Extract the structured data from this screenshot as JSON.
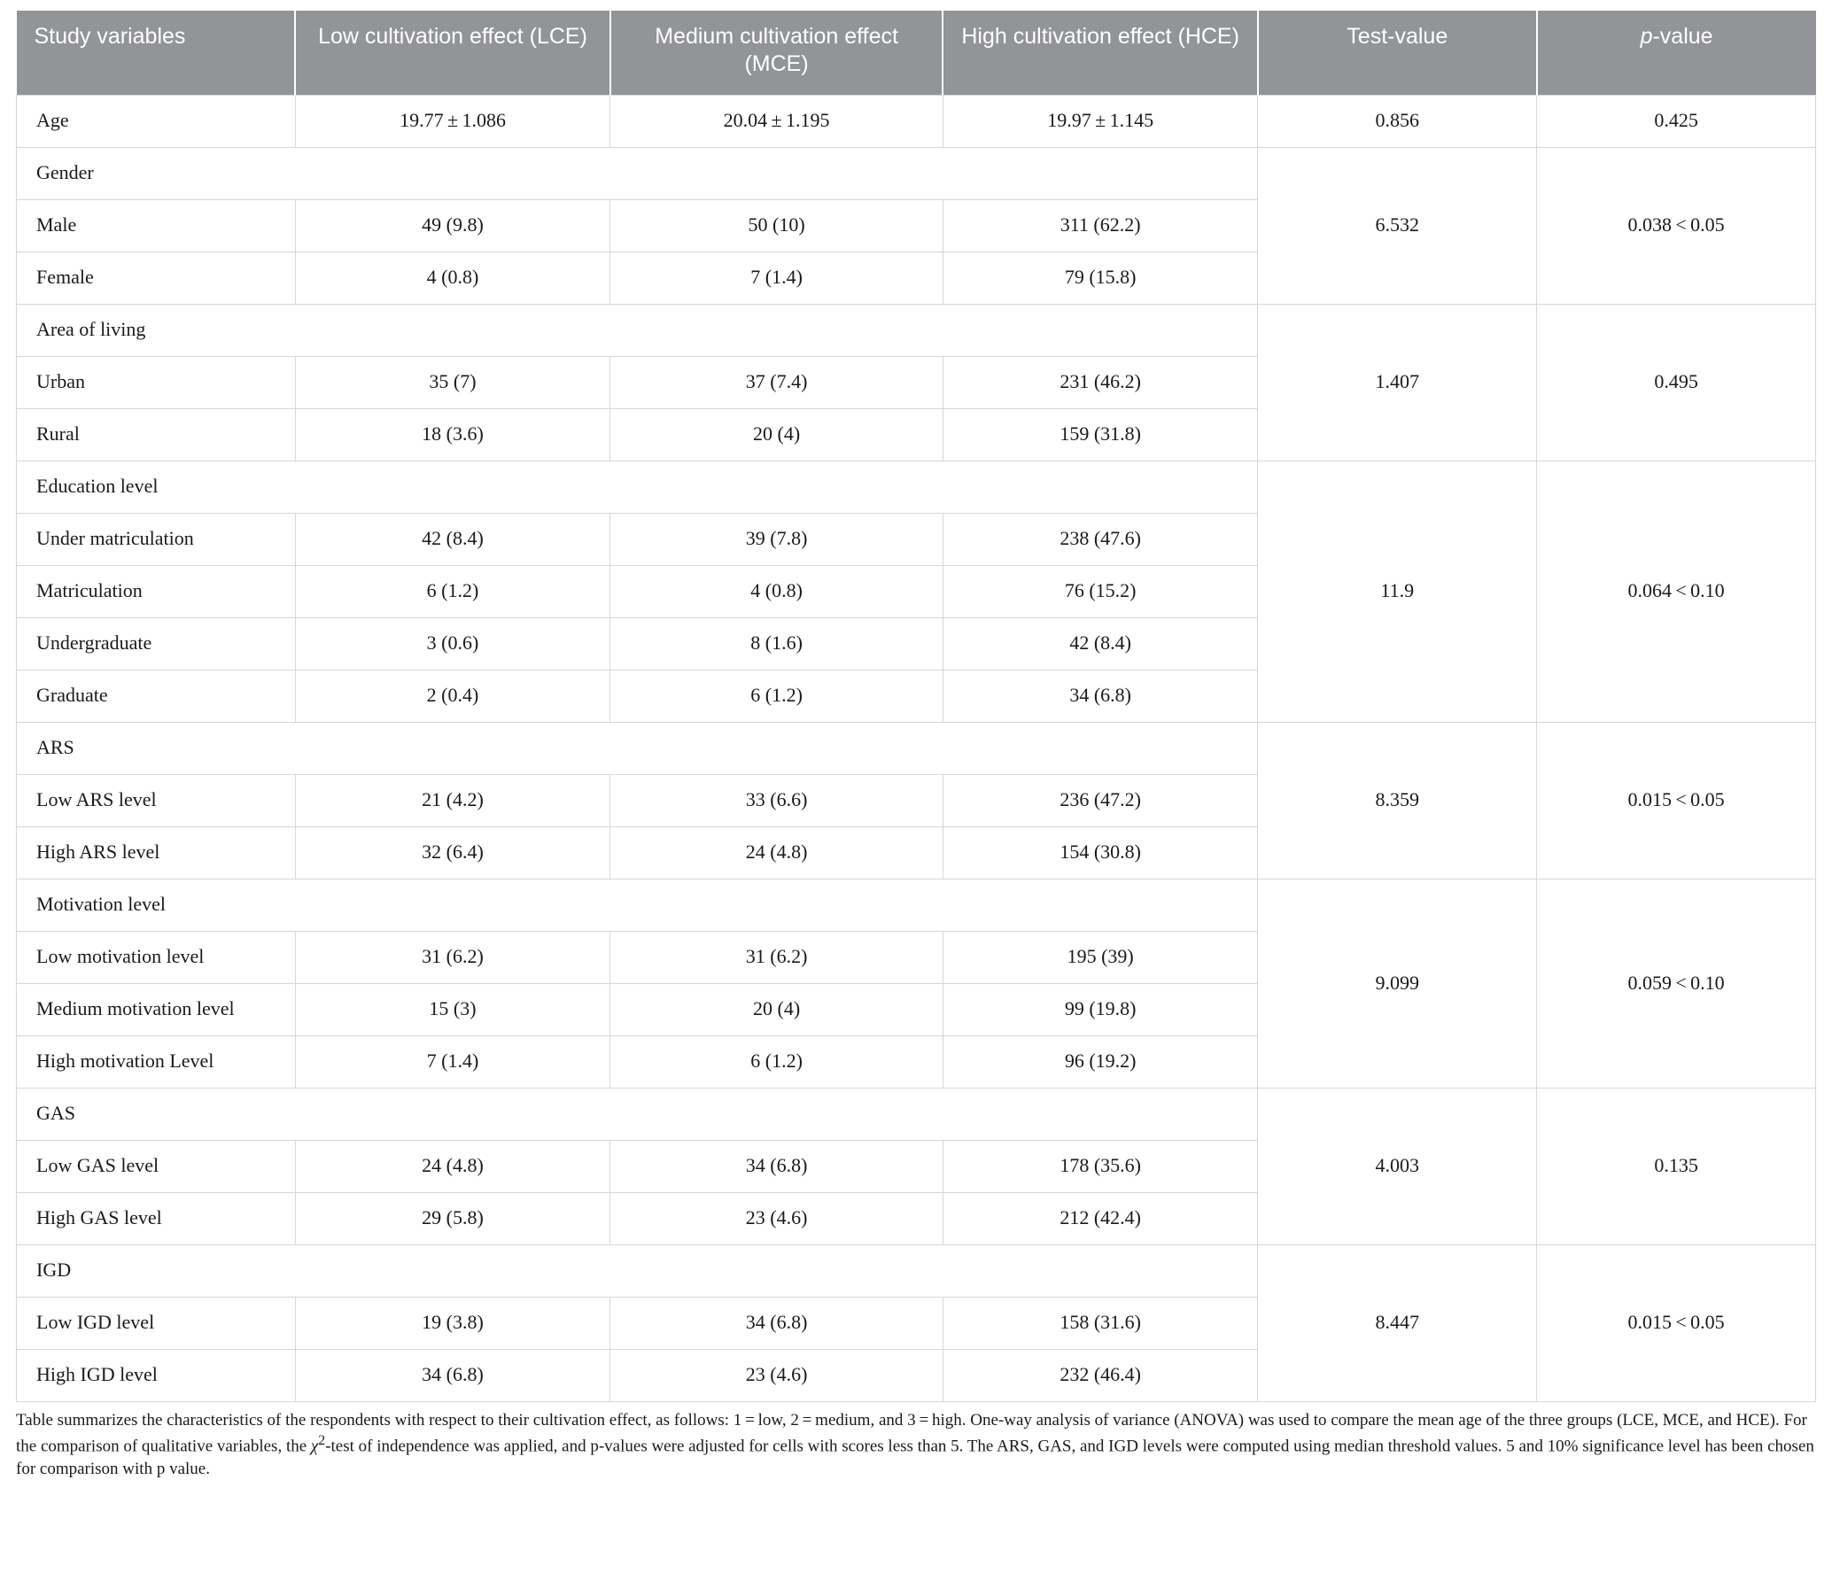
{
  "colors": {
    "header_bg": "#929497",
    "header_text": "#ffffff",
    "cell_border": "#d6d7d8",
    "body_text": "#1a1a1a",
    "background": "#ffffff"
  },
  "typography": {
    "header_font": "Myriad Pro / Helvetica Neue / Arial (sans-serif)",
    "body_font": "Minion Pro / Times New Roman (serif)",
    "header_fontsize_pt": 17,
    "body_fontsize_pt": 15,
    "footnote_fontsize_pt": 13
  },
  "table": {
    "type": "table",
    "column_widths_pct": [
      15.5,
      17.5,
      18.5,
      17.5,
      15.5,
      15.5
    ],
    "headers": {
      "c1": "Study variables",
      "c2": "Low cultivation effect (LCE)",
      "c3": "Medium cultivation effect (MCE)",
      "c4": "High cultivation effect (HCE)",
      "c5": "Test-value",
      "c6_html": "<span style=\"font-style:italic;\">p</span>-value"
    },
    "rows": [
      {
        "kind": "data",
        "label": "Age",
        "lce": "19.77 ± 1.086",
        "mce": "20.04 ± 1.195",
        "hce": "19.97 ± 1.145",
        "test": "0.856",
        "p": "0.425"
      },
      {
        "kind": "section",
        "label": "Gender",
        "test": "6.532",
        "p": "0.038 < 0.05",
        "rowspan": 3
      },
      {
        "kind": "subdata",
        "label": "Male",
        "lce": "49 (9.8)",
        "mce": "50 (10)",
        "hce": "311 (62.2)"
      },
      {
        "kind": "subdata",
        "label": "Female",
        "lce": "4 (0.8)",
        "mce": "7 (1.4)",
        "hce": "79 (15.8)"
      },
      {
        "kind": "section",
        "label": "Area of living",
        "test": "1.407",
        "p": "0.495",
        "rowspan": 3
      },
      {
        "kind": "subdata",
        "label": "Urban",
        "lce": "35 (7)",
        "mce": "37 (7.4)",
        "hce": "231 (46.2)"
      },
      {
        "kind": "subdata",
        "label": "Rural",
        "lce": "18 (3.6)",
        "mce": "20 (4)",
        "hce": "159 (31.8)"
      },
      {
        "kind": "section",
        "label": "Education level",
        "test": "11.9",
        "p": "0.064 < 0.10",
        "rowspan": 5
      },
      {
        "kind": "subdata",
        "label": "Under matriculation",
        "lce": "42 (8.4)",
        "mce": "39 (7.8)",
        "hce": "238 (47.6)"
      },
      {
        "kind": "subdata",
        "label": "Matriculation",
        "lce": "6 (1.2)",
        "mce": "4 (0.8)",
        "hce": "76 (15.2)"
      },
      {
        "kind": "subdata",
        "label": "Undergraduate",
        "lce": "3 (0.6)",
        "mce": "8 (1.6)",
        "hce": "42 (8.4)"
      },
      {
        "kind": "subdata",
        "label": "Graduate",
        "lce": "2 (0.4)",
        "mce": "6 (1.2)",
        "hce": "34 (6.8)"
      },
      {
        "kind": "section",
        "label": "ARS",
        "test": "8.359",
        "p": "0.015 < 0.05",
        "rowspan": 3
      },
      {
        "kind": "subdata",
        "label": "Low ARS level",
        "lce": "21 (4.2)",
        "mce": "33 (6.6)",
        "hce": "236 (47.2)"
      },
      {
        "kind": "subdata",
        "label": "High ARS level",
        "lce": "32 (6.4)",
        "mce": "24 (4.8)",
        "hce": "154 (30.8)"
      },
      {
        "kind": "section",
        "label": "Motivation level",
        "test": "9.099",
        "p": "0.059 < 0.10",
        "rowspan": 4
      },
      {
        "kind": "subdata",
        "label": "Low motivation level",
        "lce": "31 (6.2)",
        "mce": "31 (6.2)",
        "hce": "195 (39)"
      },
      {
        "kind": "subdata",
        "label": "Medium motivation level",
        "lce": "15 (3)",
        "mce": "20 (4)",
        "hce": "99 (19.8)"
      },
      {
        "kind": "subdata",
        "label": "High motivation Level",
        "lce": "7 (1.4)",
        "mce": "6 (1.2)",
        "hce": "96 (19.2)"
      },
      {
        "kind": "section",
        "label": "GAS",
        "test": "4.003",
        "p": "0.135",
        "rowspan": 3
      },
      {
        "kind": "subdata",
        "label": "Low GAS level",
        "lce": "24 (4.8)",
        "mce": "34 (6.8)",
        "hce": "178 (35.6)"
      },
      {
        "kind": "subdata",
        "label": "High GAS level",
        "lce": "29 (5.8)",
        "mce": "23 (4.6)",
        "hce": "212 (42.4)"
      },
      {
        "kind": "section",
        "label": "IGD",
        "test": "8.447",
        "p": "0.015 < 0.05",
        "rowspan": 3
      },
      {
        "kind": "subdata",
        "label": "Low IGD level",
        "lce": "19 (3.8)",
        "mce": "34 (6.8)",
        "hce": "158 (31.6)"
      },
      {
        "kind": "subdata",
        "label": "High IGD level",
        "lce": "34 (6.8)",
        "mce": "23 (4.6)",
        "hce": "232 (46.4)"
      }
    ]
  },
  "footnote_html": "Table summarizes the characteristics of the respondents with respect to their cultivation effect, as follows: 1 = low, 2 = medium, and 3 = high. One-way analysis of variance (ANOVA) was used to compare the mean age of the three groups (LCE, MCE, and HCE). For the comparison of qualitative variables, the <span class=\"ital\">χ</span><sup>2</sup>-test of independence was applied, and p-values were adjusted for cells with scores less than 5. The ARS, GAS, and IGD levels were computed using median threshold values. 5 and 10% significance level has been chosen for comparison with p value."
}
